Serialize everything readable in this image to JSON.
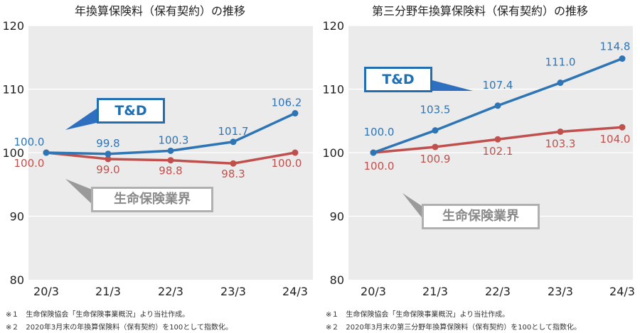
{
  "colors": {
    "td_line": "#2e75b6",
    "td_label": "#2e75b6",
    "industry_line": "#c0504d",
    "industry_label": "#c0504d",
    "callout_td_border": "#1f6fb2",
    "callout_td_tail": "#2e6fc0",
    "callout_ind_border": "#b0b0b0",
    "callout_ind_tail": "#9a9a9a",
    "plot_bg": "#ebebeb",
    "axis_text": "#222222"
  },
  "chart_data": [
    {
      "type": "line",
      "title": "年換算保険料（保有契約）の推移",
      "categories": [
        "20/3",
        "21/3",
        "22/3",
        "23/3",
        "24/3"
      ],
      "ylim": [
        80,
        120
      ],
      "yticks": [
        80,
        90,
        100,
        110,
        120
      ],
      "grid": true,
      "series": [
        {
          "name": "T&D",
          "values": [
            100.0,
            99.8,
            100.3,
            101.7,
            106.2
          ],
          "labels": [
            "100.0",
            "99.8",
            "100.3",
            "101.7",
            "106.2"
          ]
        },
        {
          "name": "生命保険業界",
          "values": [
            100.0,
            99.0,
            98.8,
            98.3,
            100.0
          ],
          "labels": [
            "100.0",
            "99.0",
            "98.8",
            "98.3",
            "100.0"
          ]
        }
      ],
      "notes": [
        "※１　生命保険協会「生命保険事業概況」より当社作成。",
        "※２　2020年3月末の年換算保険料（保有契約）を100として指数化。"
      ]
    },
    {
      "type": "line",
      "title": "第三分野年換算保険料（保有契約）の推移",
      "categories": [
        "20/3",
        "21/3",
        "22/3",
        "23/3",
        "24/3"
      ],
      "ylim": [
        80,
        120
      ],
      "yticks": [
        80,
        90,
        100,
        110,
        120
      ],
      "grid": true,
      "series": [
        {
          "name": "T&D",
          "values": [
            100.0,
            103.5,
            107.4,
            111.0,
            114.8
          ],
          "labels": [
            "100.0",
            "103.5",
            "107.4",
            "111.0",
            "114.8"
          ]
        },
        {
          "name": "生命保険業界",
          "values": [
            100.0,
            100.9,
            102.1,
            103.3,
            104.0
          ],
          "labels": [
            "100.0",
            "100.9",
            "102.1",
            "103.3",
            "104.0"
          ]
        }
      ],
      "notes": [
        "※１　生命保険協会「生命保険事業概況」より当社作成。",
        "※２　2020年3月末の第三分野年換算保険料（保有契約）を100として指数化。"
      ]
    }
  ]
}
